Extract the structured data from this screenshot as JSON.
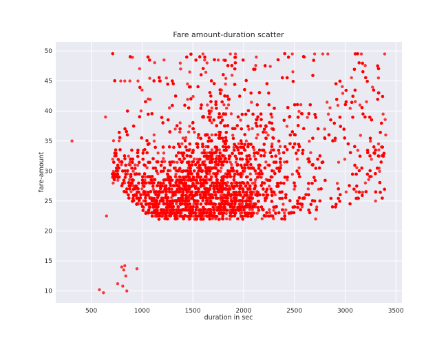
{
  "chart_data": {
    "type": "scatter",
    "title": "Fare amount-duration scatter",
    "xlabel": "duration in sec",
    "ylabel": "fare-amount",
    "xlim": [
      150,
      3560
    ],
    "ylim": [
      8,
      51.5
    ],
    "xticks": [
      500,
      1000,
      1500,
      2000,
      2500,
      3000,
      3500
    ],
    "yticks": [
      10,
      15,
      20,
      25,
      30,
      35,
      40,
      45,
      50
    ],
    "grid": true,
    "legend": "none",
    "style": {
      "background": "#EAEAF2",
      "grid_color": "#FFFFFF",
      "point_color": "#FF0000"
    },
    "series": [
      {
        "points_note_free": true,
        "points": [
          [
            310,
            35.0
          ],
          [
            580,
            10.2
          ],
          [
            620,
            9.7
          ],
          [
            650,
            22.5
          ],
          [
            640,
            39.0
          ],
          [
            730,
            32.5
          ],
          [
            760,
            11.2
          ],
          [
            780,
            31.5
          ],
          [
            790,
            45.0
          ],
          [
            800,
            14.0
          ],
          [
            810,
            10.8
          ],
          [
            820,
            13.5
          ],
          [
            830,
            14.2
          ],
          [
            840,
            12.5
          ],
          [
            850,
            10.0
          ],
          [
            830,
            45.0
          ],
          [
            880,
            45.0
          ],
          [
            950,
            13.7
          ],
          [
            960,
            45.0
          ],
          [
            990,
            40.0
          ],
          [
            1000,
            43.5
          ],
          [
            1060,
            42.0
          ],
          [
            1180,
            45.0
          ],
          [
            1240,
            45.5
          ],
          [
            1380,
            47.0
          ],
          [
            1470,
            46.5
          ],
          [
            1600,
            49.5
          ],
          [
            1640,
            48.0
          ],
          [
            1750,
            48.5
          ],
          [
            1870,
            49.5
          ],
          [
            1920,
            49.5
          ],
          [
            2480,
            49.5
          ],
          [
            2600,
            49.0
          ],
          [
            2700,
            49.5
          ],
          [
            2780,
            49.5
          ],
          [
            2830,
            49.5
          ],
          [
            3160,
            49.5
          ],
          [
            3300,
            25.0
          ],
          [
            3390,
            49.5
          ],
          [
            2710,
            22.0
          ],
          [
            3010,
            26.5
          ],
          [
            3200,
            28.0
          ],
          [
            3330,
            34.5
          ],
          [
            3400,
            36.0
          ]
        ],
        "dense_region": {
          "description_free": true,
          "x_range": [
            700,
            3400
          ],
          "y_floor": 22.0,
          "y_ceiling": 49.8
        }
      }
    ]
  }
}
